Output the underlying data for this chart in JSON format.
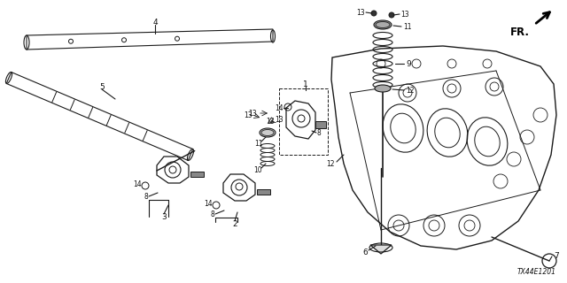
{
  "bg_color": "#ffffff",
  "diagram_code": "TX44E1201",
  "line_color": "#1a1a1a",
  "text_color": "#111111",
  "fs": 6.5,
  "fs_small": 5.5
}
